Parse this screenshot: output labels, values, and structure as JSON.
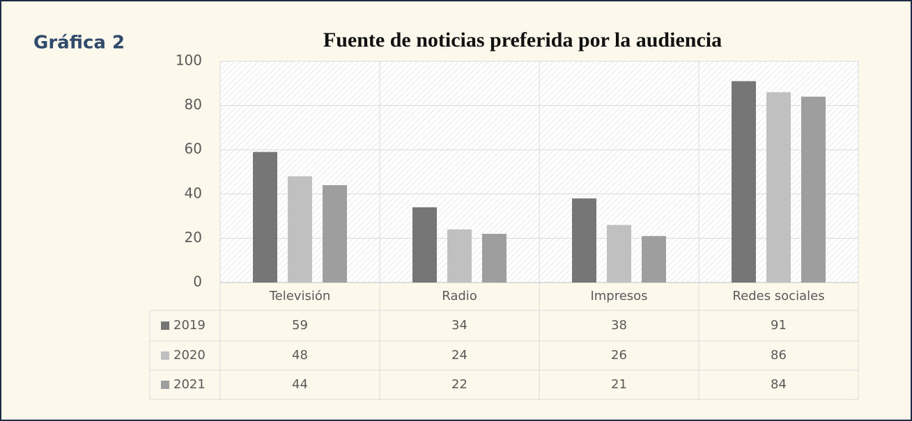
{
  "heading": "Gráfica 2",
  "chart_data": {
    "type": "bar",
    "title": "Fuente de noticias preferida por la audiencia",
    "categories": [
      "Televisión",
      "Radio",
      "Impresos",
      "Redes sociales"
    ],
    "series": [
      {
        "name": "2019",
        "color": "#767676",
        "values": [
          59,
          34,
          38,
          91
        ]
      },
      {
        "name": "2020",
        "color": "#c0c0c0",
        "values": [
          48,
          24,
          26,
          86
        ]
      },
      {
        "name": "2021",
        "color": "#9e9e9e",
        "values": [
          44,
          22,
          21,
          84
        ]
      }
    ],
    "ylim": [
      0,
      100
    ],
    "yticks": [
      0,
      20,
      40,
      60,
      80,
      100
    ],
    "grid": true
  }
}
